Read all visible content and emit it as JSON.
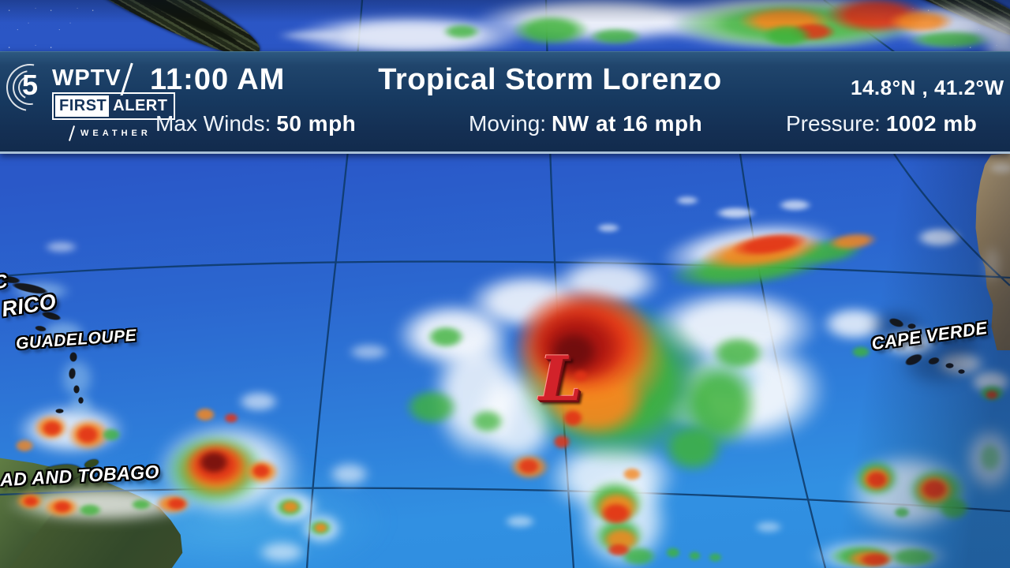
{
  "header": {
    "logo": {
      "channel": "5",
      "call_letters": "WPTV",
      "brand_first": "FIRST",
      "brand_alert": "ALERT",
      "brand_weather": "WEATHER"
    },
    "time": "11:00 AM",
    "title": "Tropical Storm Lorenzo",
    "coordinates": "14.8°N , 41.2°W",
    "stats": [
      {
        "label": "Max Winds:",
        "value": "50 mph"
      },
      {
        "label": "Moving:",
        "value": "NW at 16 mph"
      },
      {
        "label": "Pressure:",
        "value": "1002 mb"
      }
    ]
  },
  "map": {
    "storm_marker": {
      "symbol": "L"
    },
    "labels": [
      {
        "text": "C"
      },
      {
        "text": "RICO"
      },
      {
        "text": "GUADELOUPE"
      },
      {
        "text": "AD AND TOBAGO"
      },
      {
        "text": "CAPE VERDE"
      }
    ],
    "colors": {
      "banner_navy": "#16345a",
      "ocean_top": "#2b55c4",
      "ocean_bottom": "#3190e2",
      "radar_green": "#3fb33a",
      "radar_orange": "#f6871f",
      "radar_red": "#e23317",
      "storm_marker_red": "#d2222a",
      "label_white": "#ffffff"
    }
  }
}
